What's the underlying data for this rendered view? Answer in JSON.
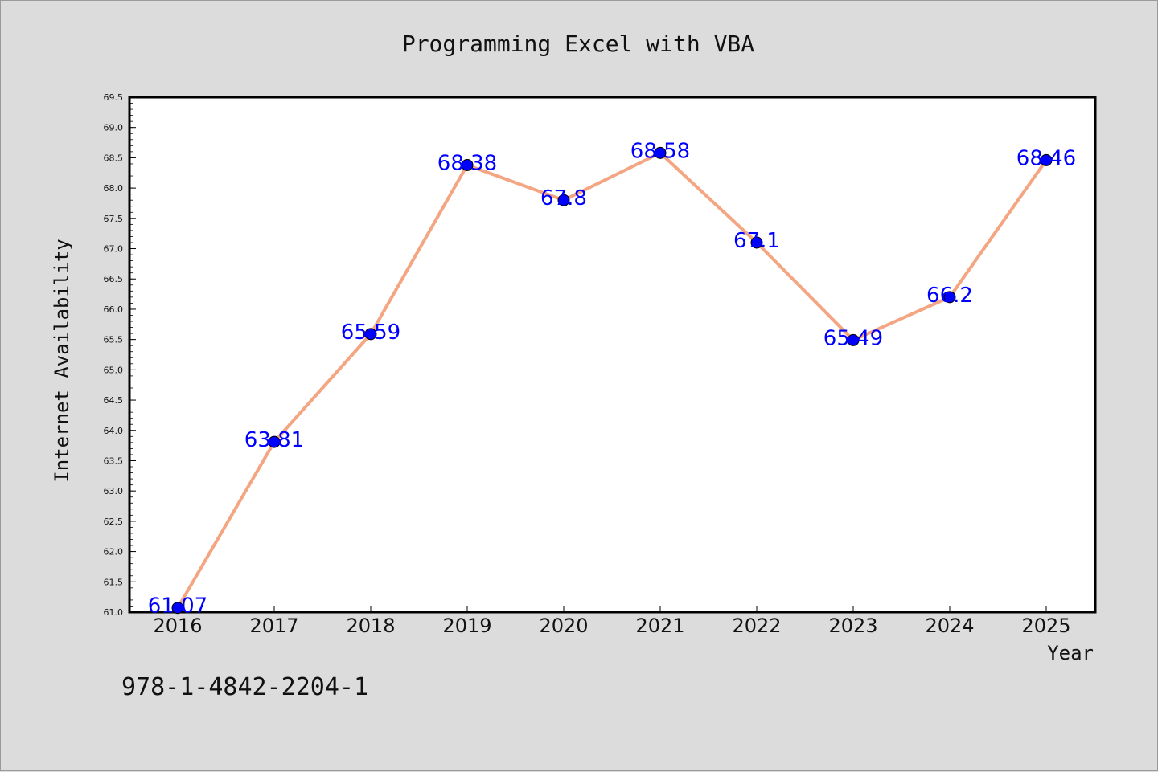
{
  "chart_data": {
    "type": "line",
    "title": "Programming Excel with VBA",
    "xlabel": "Year",
    "ylabel": "Internet Availability",
    "x": [
      "2016",
      "2017",
      "2018",
      "2019",
      "2020",
      "2021",
      "2022",
      "2023",
      "2024",
      "2025"
    ],
    "values": [
      61.07,
      63.81,
      65.59,
      68.38,
      67.8,
      68.58,
      67.1,
      65.49,
      66.2,
      68.46
    ],
    "data_labels": [
      "61.07",
      "63.81",
      "65.59",
      "68.38",
      "67.8",
      "68.58",
      "67.1",
      "65.49",
      "66.2",
      "68.46"
    ],
    "ylim": [
      61.0,
      69.5
    ],
    "yticks": [
      "61.0",
      "61.5",
      "62.0",
      "62.5",
      "63.0",
      "63.5",
      "64.0",
      "64.5",
      "65.0",
      "65.5",
      "66.0",
      "66.5",
      "67.0",
      "67.5",
      "68.0",
      "68.5",
      "69.0",
      "69.5"
    ],
    "grid": false,
    "line_color": "#f4a582",
    "marker_color": "#0000ff",
    "label_color": "#0000ff",
    "plot_background": "#ffffff",
    "figure_background": "#dcdcdc"
  },
  "footer": {
    "isbn": "978-1-4842-2204-1"
  }
}
